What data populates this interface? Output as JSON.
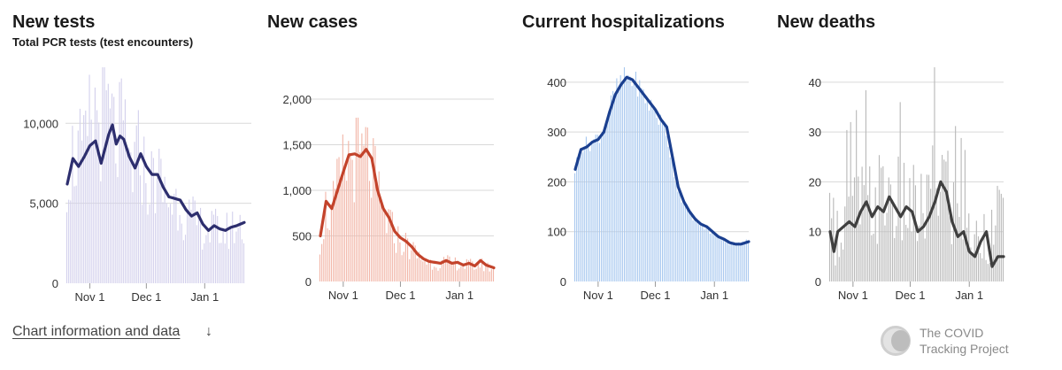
{
  "chart_data": [
    {
      "id": "tests",
      "type": "bar",
      "title": "New tests",
      "subtitle": "Total PCR tests (test encounters)",
      "ylim": [
        0,
        13500
      ],
      "yticks": [
        0,
        5000,
        10000
      ],
      "ytick_labels": [
        "0",
        "5,000",
        "10,000"
      ],
      "xtick_labels": [
        "Nov 1",
        "Dec 1",
        "Jan 1"
      ],
      "xtick_days": [
        12,
        42,
        73
      ],
      "days": 95,
      "bar_color": "#d3d0ec",
      "line_color": "#2d2e6e",
      "anchors_x": [
        0,
        3,
        6,
        9,
        12,
        15,
        18,
        20,
        22,
        24,
        26,
        28,
        30,
        33,
        36,
        39,
        42,
        45,
        48,
        51,
        54,
        57,
        60,
        63,
        66,
        69,
        72,
        75,
        78,
        81,
        84,
        87,
        90,
        94
      ],
      "line_anchors": [
        6200,
        7800,
        7300,
        7900,
        8600,
        8900,
        7500,
        8400,
        9300,
        9900,
        8700,
        9200,
        9000,
        7900,
        7200,
        8100,
        7300,
        6800,
        6800,
        6000,
        5400,
        5300,
        5200,
        4600,
        4200,
        4400,
        3700,
        3300,
        3600,
        3400,
        3300,
        3500,
        3600,
        3800
      ],
      "bar_anchors": [
        7500,
        8500,
        9000,
        8200,
        10500,
        11500,
        11000,
        12800,
        11000,
        10500,
        9500,
        10000,
        9800,
        8000,
        7800,
        9000,
        7000,
        6800,
        7500,
        6200,
        5600,
        5500,
        5800,
        4400,
        4300,
        4000,
        3800,
        3500,
        3700,
        3500,
        3400,
        3700,
        3800,
        3900
      ]
    },
    {
      "id": "cases",
      "type": "bar",
      "title": "New cases",
      "ylim": [
        0,
        2350
      ],
      "yticks": [
        0,
        500,
        1000,
        1500,
        2000
      ],
      "ytick_labels": [
        "0",
        "500",
        "1,000",
        "1,500",
        "2,000"
      ],
      "xtick_labels": [
        "Nov 1",
        "Dec 1",
        "Jan 1"
      ],
      "xtick_days": [
        12,
        42,
        73
      ],
      "days": 92,
      "bar_color": "#f2b6a8",
      "line_color": "#c3432b",
      "anchors_x": [
        0,
        3,
        6,
        9,
        12,
        15,
        18,
        21,
        24,
        27,
        30,
        33,
        36,
        39,
        42,
        45,
        48,
        51,
        54,
        57,
        60,
        63,
        66,
        69,
        72,
        75,
        78,
        81,
        84,
        87,
        91
      ],
      "line_anchors": [
        500,
        880,
        800,
        1000,
        1200,
        1390,
        1400,
        1370,
        1450,
        1350,
        1000,
        800,
        700,
        550,
        480,
        440,
        380,
        300,
        250,
        220,
        210,
        200,
        230,
        200,
        210,
        180,
        200,
        170,
        230,
        180,
        150
      ],
      "bar_anchors": [
        500,
        850,
        800,
        1050,
        1300,
        1450,
        1500,
        1400,
        1500,
        1350,
        1050,
        800,
        700,
        560,
        480,
        440,
        390,
        310,
        260,
        230,
        220,
        210,
        230,
        210,
        220,
        190,
        200,
        180,
        210,
        180,
        150
      ]
    },
    {
      "id": "hosp",
      "type": "bar",
      "title": "Current hospitalizations",
      "ylim": [
        0,
        430
      ],
      "yticks": [
        0,
        100,
        200,
        300,
        400
      ],
      "ytick_labels": [
        "0",
        "100",
        "200",
        "300",
        "400"
      ],
      "xtick_labels": [
        "Nov 1",
        "Dec 1",
        "Jan 1"
      ],
      "xtick_days": [
        12,
        42,
        73
      ],
      "days": 92,
      "bar_color": "#a8c8ef",
      "line_color": "#1a3f8f",
      "anchors_x": [
        0,
        3,
        6,
        9,
        12,
        15,
        18,
        21,
        24,
        27,
        30,
        33,
        36,
        39,
        42,
        45,
        48,
        51,
        54,
        57,
        60,
        63,
        66,
        69,
        72,
        75,
        78,
        81,
        84,
        87,
        91
      ],
      "line_anchors": [
        225,
        265,
        270,
        280,
        285,
        300,
        340,
        375,
        395,
        410,
        405,
        390,
        375,
        360,
        345,
        325,
        310,
        250,
        190,
        160,
        140,
        125,
        115,
        110,
        100,
        90,
        85,
        78,
        75,
        75,
        80
      ],
      "bar_anchors": [
        225,
        270,
        275,
        280,
        290,
        305,
        345,
        380,
        400,
        415,
        405,
        395,
        375,
        355,
        345,
        320,
        300,
        240,
        185,
        160,
        140,
        125,
        115,
        105,
        98,
        90,
        84,
        78,
        75,
        76,
        82
      ]
    },
    {
      "id": "deaths",
      "type": "bar",
      "title": "New deaths",
      "ylim": [
        0,
        43
      ],
      "yticks": [
        0,
        10,
        20,
        30,
        40
      ],
      "ytick_labels": [
        "0",
        "10",
        "20",
        "30",
        "40"
      ],
      "xtick_labels": [
        "Nov 1",
        "Dec 1",
        "Jan 1"
      ],
      "xtick_days": [
        12,
        42,
        73
      ],
      "days": 92,
      "bar_color": "#b9b9b9",
      "line_color": "#3f3f3f",
      "anchors_x": [
        0,
        2,
        4,
        7,
        10,
        13,
        16,
        19,
        22,
        25,
        28,
        31,
        34,
        37,
        40,
        43,
        46,
        49,
        52,
        55,
        58,
        61,
        64,
        67,
        70,
        73,
        76,
        79,
        82,
        85,
        88,
        91
      ],
      "line_anchors": [
        10,
        6,
        10,
        11,
        12,
        11,
        14,
        16,
        13,
        15,
        14,
        17,
        15,
        13,
        15,
        14,
        10,
        11,
        13,
        16,
        20,
        18,
        12,
        9,
        10,
        6,
        5,
        8,
        10,
        3,
        5,
        5
      ],
      "bar_anchors": [
        11,
        7,
        10,
        12,
        13,
        14,
        15,
        16,
        15,
        17,
        16,
        18,
        17,
        15,
        16,
        15,
        13,
        14,
        16,
        18,
        22,
        20,
        15,
        12,
        12,
        9,
        8,
        10,
        11,
        6,
        8,
        7
      ]
    }
  ],
  "footer": {
    "link_label": "Chart information and data",
    "arrow": "↓",
    "brand_line1": "The COVID",
    "brand_line2": "Tracking Project",
    "brand_icon": "covid-tracking-logo-icon"
  }
}
